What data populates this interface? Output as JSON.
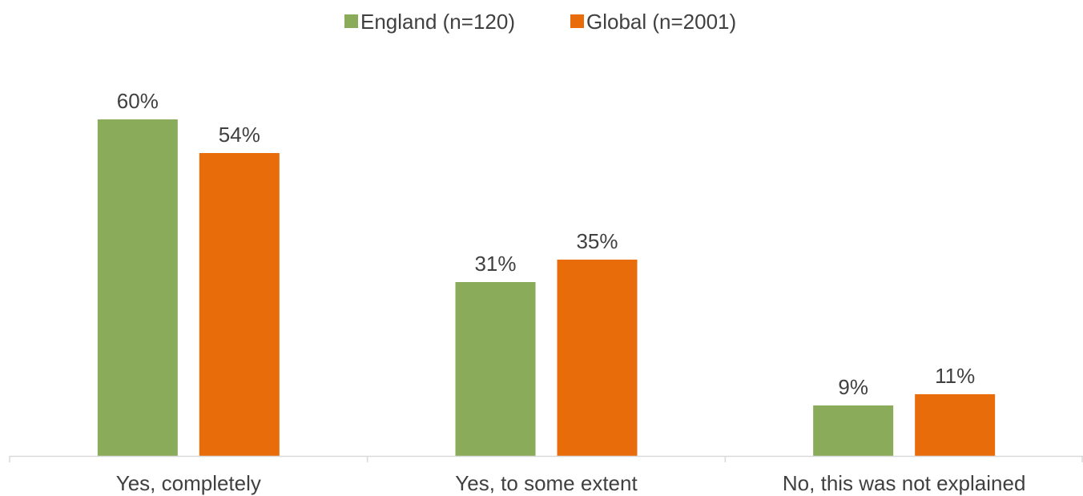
{
  "chart_data": {
    "type": "bar",
    "categories": [
      "Yes, completely",
      "Yes, to some extent",
      "No, this was not explained"
    ],
    "series": [
      {
        "name": "England (n=120)",
        "values": [
          60,
          31,
          9
        ],
        "labels": [
          "60%",
          "31%",
          "9%"
        ],
        "color": "#8aab59"
      },
      {
        "name": "Global (n=2001)",
        "values": [
          54,
          35,
          11
        ],
        "labels": [
          "54%",
          "35%",
          "11%"
        ],
        "color": "#e96c0a"
      }
    ],
    "title": "",
    "xlabel": "",
    "ylabel": "",
    "ylim": [
      0,
      70
    ],
    "grid": false,
    "legend_position": "top-center",
    "axis_color": "#d9d9d9"
  }
}
